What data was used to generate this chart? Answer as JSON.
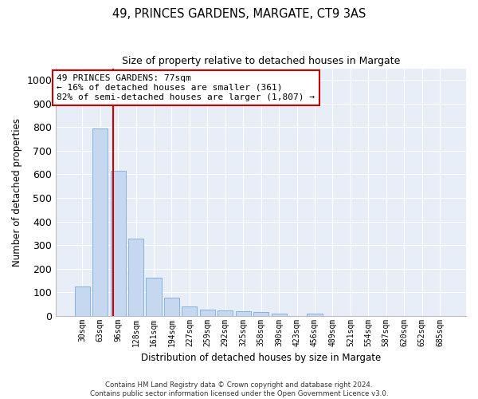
{
  "title1": "49, PRINCES GARDENS, MARGATE, CT9 3AS",
  "title2": "Size of property relative to detached houses in Margate",
  "xlabel": "Distribution of detached houses by size in Margate",
  "ylabel": "Number of detached properties",
  "annotation_line1": "49 PRINCES GARDENS: 77sqm",
  "annotation_line2": "← 16% of detached houses are smaller (361)",
  "annotation_line3": "82% of semi-detached houses are larger (1,807) →",
  "categories": [
    "30sqm",
    "63sqm",
    "96sqm",
    "128sqm",
    "161sqm",
    "194sqm",
    "227sqm",
    "259sqm",
    "292sqm",
    "325sqm",
    "358sqm",
    "390sqm",
    "423sqm",
    "456sqm",
    "489sqm",
    "521sqm",
    "554sqm",
    "587sqm",
    "620sqm",
    "652sqm",
    "685sqm"
  ],
  "values": [
    125,
    795,
    615,
    328,
    162,
    78,
    40,
    27,
    24,
    20,
    16,
    8,
    0,
    10,
    0,
    0,
    0,
    0,
    0,
    0,
    0
  ],
  "bar_color": "#c5d8f0",
  "bar_edge_color": "#7aaadc",
  "vline_color": "#cc0000",
  "vline_x": 1.75,
  "ylim_max": 1050,
  "yticks": [
    0,
    100,
    200,
    300,
    400,
    500,
    600,
    700,
    800,
    900,
    1000
  ],
  "annotation_box_color": "#cc0000",
  "background_color": "#e8eef8",
  "grid_color": "#ffffff",
  "footer_line1": "Contains HM Land Registry data © Crown copyright and database right 2024.",
  "footer_line2": "Contains public sector information licensed under the Open Government Licence v3.0."
}
